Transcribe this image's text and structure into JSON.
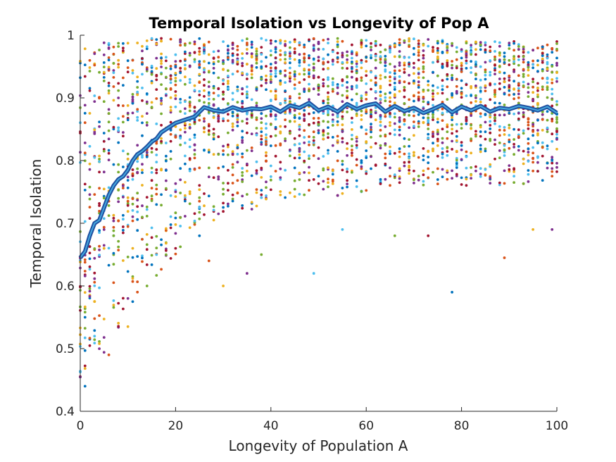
{
  "chart_data": {
    "type": "scatter",
    "title": "Temporal Isolation vs Longevity of Pop A",
    "xlabel": "Longevity of Population A",
    "ylabel": "Temporal Isolation",
    "xlim": [
      0,
      100
    ],
    "ylim": [
      0.4,
      1
    ],
    "xticks": [
      0,
      20,
      40,
      60,
      80,
      100
    ],
    "yticks": [
      0.4,
      0.5,
      0.6,
      0.7,
      0.8,
      0.9,
      1
    ],
    "ytick_labels": [
      "0.4",
      "0.5",
      "0.6",
      "0.7",
      "0.8",
      "0.9",
      "1"
    ],
    "grid": false,
    "legend": "none",
    "point_colors": [
      "#0072bd",
      "#d95319",
      "#edb120",
      "#7e2f8e",
      "#77ac30",
      "#4dbeee",
      "#a2142f"
    ],
    "mean_line_color": "#1f4fa0",
    "mean_line_highlight": "#4dbeee",
    "mean_curve": {
      "x": [
        0,
        1,
        2,
        3,
        4,
        5,
        6,
        7,
        8,
        9,
        10,
        11,
        12,
        13,
        14,
        15,
        16,
        17,
        18,
        19,
        20,
        22,
        24,
        26,
        28,
        30,
        32,
        34,
        36,
        38,
        40,
        42,
        44,
        46,
        48,
        50,
        52,
        54,
        56,
        58,
        60,
        62,
        64,
        66,
        68,
        70,
        72,
        74,
        76,
        78,
        80,
        82,
        84,
        86,
        88,
        90,
        92,
        94,
        96,
        98,
        100
      ],
      "y": [
        0.645,
        0.655,
        0.68,
        0.7,
        0.705,
        0.725,
        0.745,
        0.76,
        0.77,
        0.775,
        0.785,
        0.8,
        0.81,
        0.815,
        0.822,
        0.83,
        0.835,
        0.845,
        0.85,
        0.855,
        0.86,
        0.865,
        0.87,
        0.885,
        0.88,
        0.878,
        0.885,
        0.88,
        0.883,
        0.882,
        0.886,
        0.878,
        0.888,
        0.884,
        0.892,
        0.88,
        0.886,
        0.878,
        0.89,
        0.882,
        0.888,
        0.891,
        0.878,
        0.887,
        0.879,
        0.884,
        0.876,
        0.882,
        0.889,
        0.877,
        0.886,
        0.88,
        0.887,
        0.878,
        0.884,
        0.882,
        0.887,
        0.884,
        0.88,
        0.886,
        0.876
      ]
    },
    "spread": {
      "x": [
        0,
        5,
        10,
        15,
        20,
        25,
        30,
        40,
        50,
        60,
        70,
        80,
        90,
        100
      ],
      "lower": [
        0.44,
        0.49,
        0.56,
        0.61,
        0.64,
        0.69,
        0.71,
        0.73,
        0.74,
        0.75,
        0.76,
        0.76,
        0.76,
        0.77
      ],
      "upper": [
        0.98,
        0.99,
        0.99,
        0.995,
        0.995,
        0.995,
        0.995,
        0.995,
        0.995,
        0.995,
        0.995,
        0.99,
        0.99,
        0.99
      ]
    },
    "points_per_x": 30,
    "outliers": [
      {
        "x": 1,
        "y": 0.44
      },
      {
        "x": 6,
        "y": 0.49
      },
      {
        "x": 10,
        "y": 0.535
      },
      {
        "x": 10,
        "y": 0.58
      },
      {
        "x": 14,
        "y": 0.6
      },
      {
        "x": 16,
        "y": 0.65
      },
      {
        "x": 20,
        "y": 0.66
      },
      {
        "x": 25,
        "y": 0.68
      },
      {
        "x": 27,
        "y": 0.64
      },
      {
        "x": 30,
        "y": 0.6
      },
      {
        "x": 35,
        "y": 0.62
      },
      {
        "x": 38,
        "y": 0.65
      },
      {
        "x": 49,
        "y": 0.62
      },
      {
        "x": 73,
        "y": 0.68
      },
      {
        "x": 78,
        "y": 0.59
      },
      {
        "x": 89,
        "y": 0.645
      },
      {
        "x": 95,
        "y": 0.69
      },
      {
        "x": 99,
        "y": 0.69
      },
      {
        "x": 66,
        "y": 0.68
      },
      {
        "x": 55,
        "y": 0.69
      }
    ]
  }
}
